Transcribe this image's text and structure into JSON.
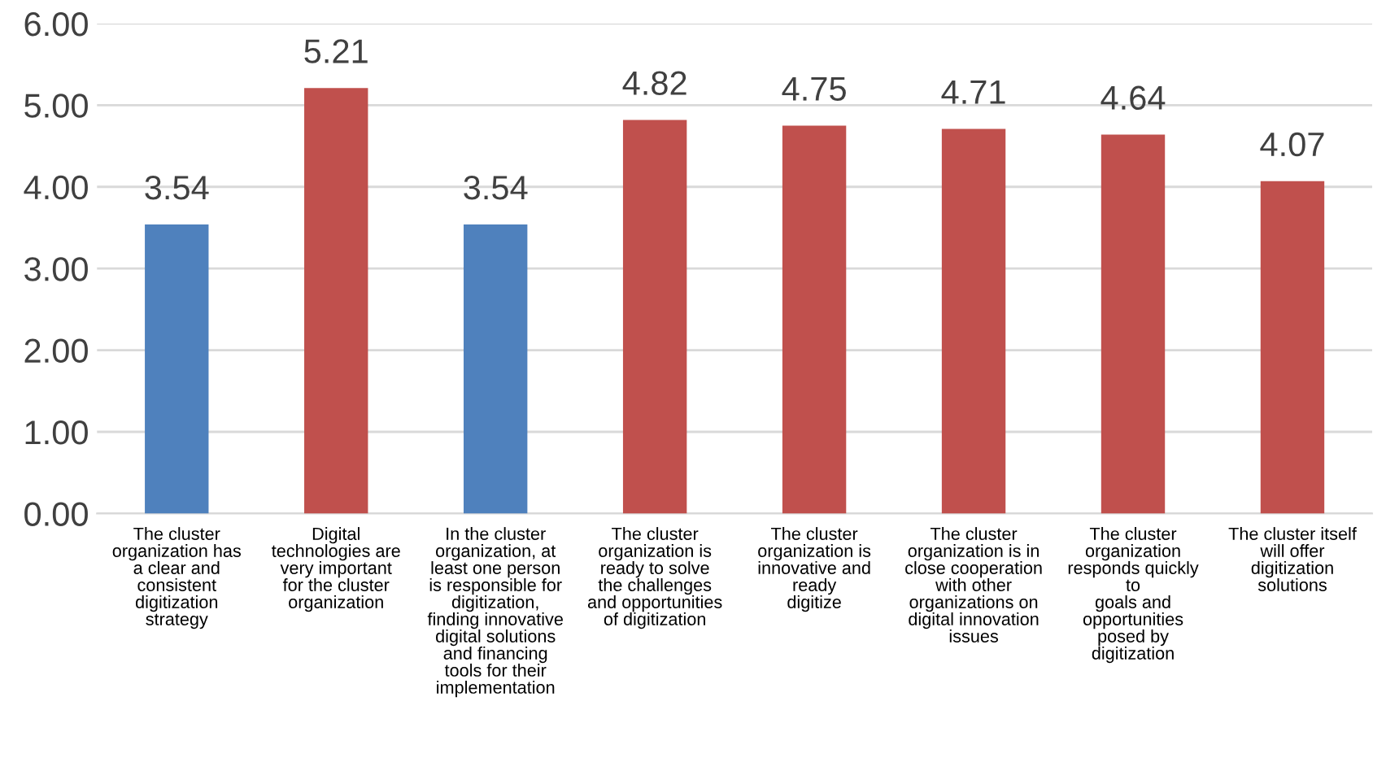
{
  "chart_data": {
    "type": "bar",
    "categories": [
      "The cluster\norganization has\na clear and\nconsistent\ndigitization\nstrategy",
      "Digital\ntechnologies are\nvery important\nfor the cluster\norganization",
      "In the cluster\norganization, at\nleast one person\nis responsible for\ndigitization,\nfinding innovative\ndigital solutions\nand financing\ntools for their\nimplementation",
      "The cluster\norganization is\nready to solve\nthe challenges\nand opportunities\nof digitization",
      "The cluster\norganization is\ninnovative and\nready\ndigitize",
      "The cluster\norganization is in\nclose cooperation\nwith other\norganizations on\ndigital innovation\nissues",
      "The cluster\norganization\nresponds quickly\nto\ngoals and\nopportunities\nposed by\ndigitization",
      "The cluster itself\nwill offer\ndigitization\nsolutions"
    ],
    "values": [
      3.54,
      5.21,
      3.54,
      4.82,
      4.75,
      4.71,
      4.64,
      4.07
    ],
    "colors": [
      "#4f81bd",
      "#c0504d",
      "#4f81bd",
      "#c0504d",
      "#c0504d",
      "#c0504d",
      "#c0504d",
      "#c0504d"
    ],
    "ylim": [
      0,
      6
    ],
    "yticks": [
      {
        "value": 0,
        "label": "0.00"
      },
      {
        "value": 1,
        "label": "1.00"
      },
      {
        "value": 2,
        "label": "2.00"
      },
      {
        "value": 3,
        "label": "3.00"
      },
      {
        "value": 4,
        "label": "4.00"
      },
      {
        "value": 5,
        "label": "5.00"
      },
      {
        "value": 6,
        "label": "6.00"
      }
    ],
    "grid": "y",
    "data_labels": true
  }
}
